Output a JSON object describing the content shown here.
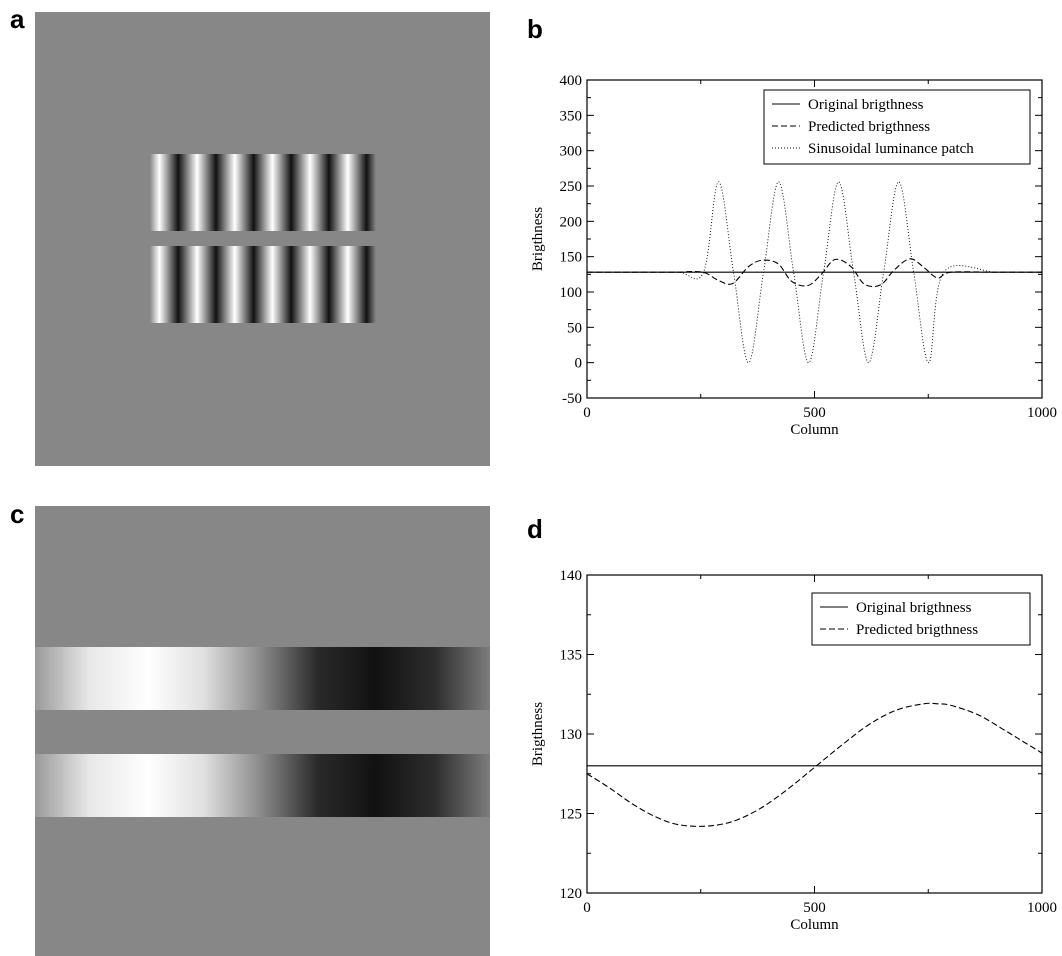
{
  "panels": {
    "a": {
      "letter": "a"
    },
    "b": {
      "letter": "b"
    },
    "c": {
      "letter": "c"
    },
    "d": {
      "letter": "d"
    }
  },
  "colors": {
    "background_gray": "#878787",
    "line": "#000000"
  },
  "chart_data": [
    {
      "panel": "b",
      "type": "line",
      "title": "",
      "xlabel": "Column",
      "ylabel": "Brigthness",
      "xlim": [
        0,
        1000
      ],
      "ylim": [
        -50,
        400
      ],
      "x_ticks": [
        0,
        500,
        1000
      ],
      "y_ticks": [
        -50,
        0,
        50,
        100,
        150,
        200,
        250,
        300,
        350,
        400
      ],
      "grid": false,
      "legend_position": "top-right",
      "series": [
        {
          "name": "Original brigthness",
          "style": "solid",
          "x": [
            0,
            1000
          ],
          "y": [
            128,
            128
          ]
        },
        {
          "name": "Predicted brigthness",
          "style": "dashed",
          "x": [
            0,
            100,
            200,
            230,
            260,
            290,
            320,
            355,
            385,
            420,
            450,
            485,
            515,
            545,
            580,
            610,
            645,
            675,
            710,
            740,
            770,
            800,
            900,
            1000
          ],
          "y": [
            128,
            128,
            128,
            129,
            127,
            116,
            112,
            136,
            145,
            140,
            115,
            109,
            125,
            146,
            136,
            111,
            110,
            131,
            147,
            135,
            120,
            128,
            128,
            128
          ]
        },
        {
          "name": "Sinusoidal luminance patch",
          "style": "dotted",
          "x": [
            0,
            100,
            200,
            256,
            289,
            322,
            355,
            388,
            421,
            454,
            487,
            520,
            553,
            586,
            619,
            652,
            685,
            718,
            751,
            784,
            900,
            1000
          ],
          "y": [
            128,
            128,
            128,
            128,
            256,
            128,
            0,
            128,
            256,
            128,
            0,
            128,
            256,
            128,
            0,
            128,
            256,
            128,
            0,
            128,
            128,
            128
          ]
        }
      ]
    },
    {
      "panel": "d",
      "type": "line",
      "title": "",
      "xlabel": "Column",
      "ylabel": "Brigthness",
      "xlim": [
        0,
        1000
      ],
      "ylim": [
        120,
        140
      ],
      "x_ticks": [
        0,
        500,
        1000
      ],
      "y_ticks": [
        120,
        125,
        130,
        135,
        140
      ],
      "grid": false,
      "legend_position": "top-right",
      "series": [
        {
          "name": "Original brigthness",
          "style": "solid",
          "x": [
            0,
            1000
          ],
          "y": [
            128,
            128
          ]
        },
        {
          "name": "Predicted brigthness",
          "style": "dashed",
          "x": [
            0,
            50,
            100,
            150,
            200,
            260,
            320,
            380,
            440,
            500,
            560,
            620,
            680,
            740,
            770,
            800,
            860,
            920,
            960,
            1000
          ],
          "y": [
            127.5,
            126.6,
            125.6,
            124.8,
            124.3,
            124.2,
            124.5,
            125.3,
            126.5,
            127.9,
            129.3,
            130.6,
            131.5,
            131.9,
            131.9,
            131.8,
            131.2,
            130.2,
            129.5,
            128.8
          ]
        }
      ]
    }
  ]
}
